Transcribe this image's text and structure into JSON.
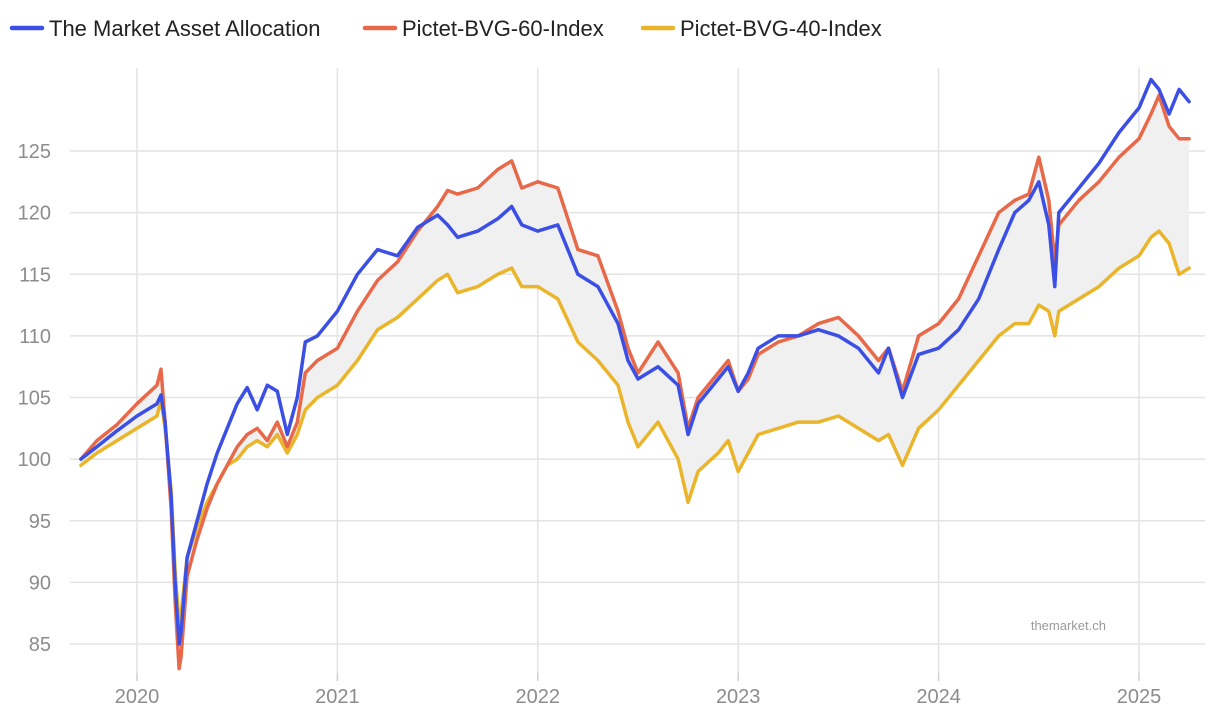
{
  "chart_data": {
    "type": "line",
    "title": "",
    "xlabel": "",
    "ylabel": "",
    "x_range": [
      2019.72,
      2025.26
    ],
    "ylim": [
      83,
      133
    ],
    "x_ticks": [
      {
        "value": 2020,
        "label": "2020"
      },
      {
        "value": 2021,
        "label": "2021"
      },
      {
        "value": 2022,
        "label": "2022"
      },
      {
        "value": 2023,
        "label": "2023"
      },
      {
        "value": 2024,
        "label": "2024"
      },
      {
        "value": 2025,
        "label": "2025"
      }
    ],
    "y_ticks": [
      {
        "value": 85,
        "label": "85"
      },
      {
        "value": 90,
        "label": "90"
      },
      {
        "value": 95,
        "label": "95"
      },
      {
        "value": 100,
        "label": "100"
      },
      {
        "value": 105,
        "label": "105"
      },
      {
        "value": 110,
        "label": "110"
      },
      {
        "value": 115,
        "label": "115"
      },
      {
        "value": 120,
        "label": "120"
      },
      {
        "value": 125,
        "label": "125"
      }
    ],
    "grid": true,
    "legend_position": "top-left",
    "band_between": [
      "Pictet-BVG-60-Index",
      "Pictet-BVG-40-Index"
    ],
    "annotation": "themarket.ch",
    "series": [
      {
        "name": "The Market Asset Allocation",
        "color": "#3b4fe4",
        "x": [
          2019.72,
          2019.8,
          2019.9,
          2020.0,
          2020.1,
          2020.12,
          2020.14,
          2020.17,
          2020.19,
          2020.21,
          2020.22,
          2020.25,
          2020.3,
          2020.35,
          2020.4,
          2020.45,
          2020.5,
          2020.55,
          2020.6,
          2020.65,
          2020.7,
          2020.75,
          2020.8,
          2020.84,
          2020.9,
          2021.0,
          2021.1,
          2021.2,
          2021.3,
          2021.4,
          2021.5,
          2021.55,
          2021.6,
          2021.7,
          2021.8,
          2021.87,
          2021.92,
          2022.0,
          2022.1,
          2022.2,
          2022.3,
          2022.4,
          2022.45,
          2022.5,
          2022.6,
          2022.7,
          2022.75,
          2022.8,
          2022.9,
          2022.95,
          2023.0,
          2023.05,
          2023.1,
          2023.2,
          2023.3,
          2023.4,
          2023.5,
          2023.6,
          2023.7,
          2023.75,
          2023.82,
          2023.9,
          2024.0,
          2024.1,
          2024.2,
          2024.3,
          2024.38,
          2024.45,
          2024.5,
          2024.55,
          2024.58,
          2024.6,
          2024.7,
          2024.8,
          2024.9,
          2025.0,
          2025.06,
          2025.1,
          2025.15,
          2025.2,
          2025.25
        ],
        "values": [
          100.0,
          101.0,
          102.3,
          103.5,
          104.5,
          105.2,
          103.0,
          97.0,
          90.0,
          85.0,
          86.0,
          92.0,
          95.0,
          98.0,
          100.5,
          102.5,
          104.5,
          105.8,
          104.0,
          106.0,
          105.5,
          102.0,
          105.0,
          109.5,
          110.0,
          112.0,
          115.0,
          117.0,
          116.5,
          118.8,
          119.8,
          119.0,
          118.0,
          118.5,
          119.5,
          120.5,
          119.0,
          118.5,
          119.0,
          115.0,
          114.0,
          111.0,
          108.0,
          106.5,
          107.5,
          106.0,
          102.0,
          104.5,
          106.5,
          107.5,
          105.5,
          107.0,
          109.0,
          110.0,
          110.0,
          110.5,
          110.0,
          109.0,
          107.0,
          109.0,
          105.0,
          108.5,
          109.0,
          110.5,
          113.0,
          117.0,
          120.0,
          121.0,
          122.5,
          119.0,
          114.0,
          120.0,
          122.0,
          124.0,
          126.5,
          128.5,
          130.8,
          130.0,
          128.0,
          130.0,
          129.0
        ]
      },
      {
        "name": "Pictet-BVG-60-Index",
        "color": "#e8694a",
        "x": [
          2019.72,
          2019.8,
          2019.9,
          2020.0,
          2020.1,
          2020.12,
          2020.14,
          2020.17,
          2020.19,
          2020.21,
          2020.22,
          2020.25,
          2020.3,
          2020.35,
          2020.4,
          2020.45,
          2020.5,
          2020.55,
          2020.6,
          2020.65,
          2020.7,
          2020.75,
          2020.8,
          2020.84,
          2020.9,
          2021.0,
          2021.1,
          2021.2,
          2021.3,
          2021.4,
          2021.5,
          2021.55,
          2021.6,
          2021.7,
          2021.8,
          2021.87,
          2021.92,
          2022.0,
          2022.1,
          2022.2,
          2022.3,
          2022.4,
          2022.45,
          2022.5,
          2022.6,
          2022.7,
          2022.75,
          2022.8,
          2022.9,
          2022.95,
          2023.0,
          2023.05,
          2023.1,
          2023.2,
          2023.3,
          2023.4,
          2023.5,
          2023.6,
          2023.7,
          2023.75,
          2023.82,
          2023.9,
          2024.0,
          2024.1,
          2024.2,
          2024.3,
          2024.38,
          2024.45,
          2024.5,
          2024.55,
          2024.58,
          2024.6,
          2024.7,
          2024.8,
          2024.9,
          2025.0,
          2025.06,
          2025.1,
          2025.15,
          2025.2,
          2025.25
        ],
        "values": [
          100.0,
          101.5,
          102.8,
          104.5,
          106.0,
          107.3,
          103.0,
          96.0,
          88.5,
          83.0,
          84.0,
          90.5,
          93.5,
          96.0,
          98.0,
          99.5,
          101.0,
          102.0,
          102.5,
          101.5,
          103.0,
          101.0,
          103.0,
          107.0,
          108.0,
          109.0,
          112.0,
          114.5,
          116.0,
          118.5,
          120.5,
          121.8,
          121.5,
          122.0,
          123.5,
          124.2,
          122.0,
          122.5,
          122.0,
          117.0,
          116.5,
          112.0,
          109.0,
          107.0,
          109.5,
          107.0,
          102.5,
          105.0,
          107.0,
          108.0,
          105.5,
          106.5,
          108.5,
          109.5,
          110.0,
          111.0,
          111.5,
          110.0,
          108.0,
          109.0,
          105.5,
          110.0,
          111.0,
          113.0,
          116.5,
          120.0,
          121.0,
          121.5,
          124.5,
          121.0,
          116.0,
          119.0,
          121.0,
          122.5,
          124.5,
          126.0,
          128.0,
          129.5,
          127.0,
          126.0,
          126.0
        ]
      },
      {
        "name": "Pictet-BVG-40-Index",
        "color": "#eab52a",
        "x": [
          2019.72,
          2019.8,
          2019.9,
          2020.0,
          2020.1,
          2020.12,
          2020.14,
          2020.17,
          2020.19,
          2020.21,
          2020.22,
          2020.25,
          2020.3,
          2020.35,
          2020.4,
          2020.45,
          2020.5,
          2020.55,
          2020.6,
          2020.65,
          2020.7,
          2020.75,
          2020.8,
          2020.84,
          2020.9,
          2021.0,
          2021.1,
          2021.2,
          2021.3,
          2021.4,
          2021.5,
          2021.55,
          2021.6,
          2021.7,
          2021.8,
          2021.87,
          2021.92,
          2022.0,
          2022.1,
          2022.2,
          2022.3,
          2022.4,
          2022.45,
          2022.5,
          2022.6,
          2022.7,
          2022.75,
          2022.8,
          2022.9,
          2022.95,
          2023.0,
          2023.05,
          2023.1,
          2023.2,
          2023.3,
          2023.4,
          2023.5,
          2023.6,
          2023.7,
          2023.75,
          2023.82,
          2023.9,
          2024.0,
          2024.1,
          2024.2,
          2024.3,
          2024.38,
          2024.45,
          2024.5,
          2024.55,
          2024.58,
          2024.6,
          2024.7,
          2024.8,
          2024.9,
          2025.0,
          2025.06,
          2025.1,
          2025.15,
          2025.2,
          2025.25
        ],
        "values": [
          99.5,
          100.5,
          101.5,
          102.5,
          103.5,
          104.8,
          102.5,
          97.5,
          91.0,
          86.5,
          87.5,
          92.0,
          94.5,
          96.5,
          98.0,
          99.5,
          100.0,
          101.0,
          101.5,
          101.0,
          102.0,
          100.5,
          102.0,
          104.0,
          105.0,
          106.0,
          108.0,
          110.5,
          111.5,
          113.0,
          114.5,
          115.0,
          113.5,
          114.0,
          115.0,
          115.5,
          114.0,
          114.0,
          113.0,
          109.5,
          108.0,
          106.0,
          103.0,
          101.0,
          103.0,
          100.0,
          96.5,
          99.0,
          100.5,
          101.5,
          99.0,
          100.5,
          102.0,
          102.5,
          103.0,
          103.0,
          103.5,
          102.5,
          101.5,
          102.0,
          99.5,
          102.5,
          104.0,
          106.0,
          108.0,
          110.0,
          111.0,
          111.0,
          112.5,
          112.0,
          110.0,
          112.0,
          113.0,
          114.0,
          115.5,
          116.5,
          118.0,
          118.5,
          117.5,
          115.0,
          115.5
        ]
      }
    ]
  }
}
